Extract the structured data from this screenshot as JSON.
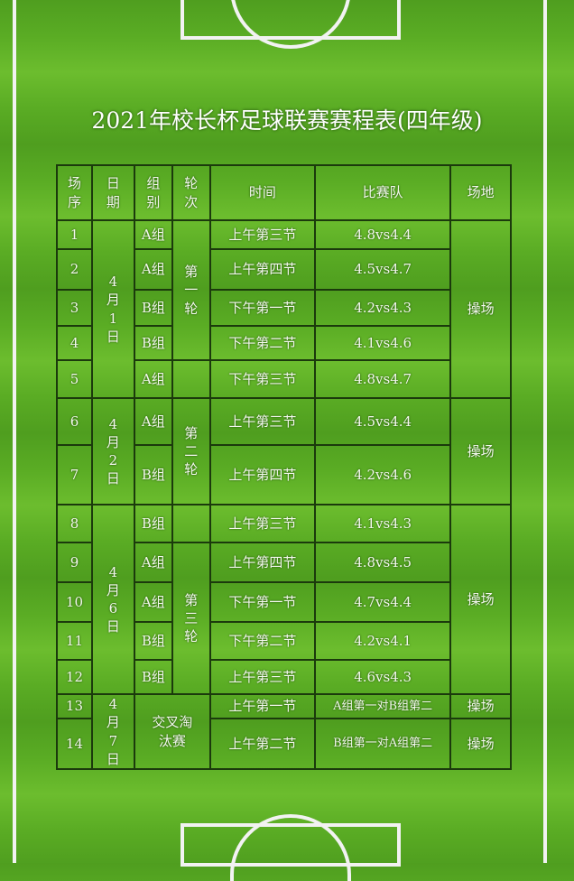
{
  "title": "2021年校长杯足球联赛赛程表(四年级)",
  "headers": {
    "seq": "场序",
    "date": "日期",
    "group": "组别",
    "round": "轮次",
    "time": "时间",
    "teams": "比赛队",
    "venue": "场地"
  },
  "dates": [
    "4月1日",
    "4月2日",
    "4月6日",
    "4月7日"
  ],
  "rounds": [
    "第一轮",
    "第二轮",
    "第三轮",
    "交叉淘汰赛"
  ],
  "venue": "操场",
  "rows": [
    {
      "seq": "1",
      "group": "A组",
      "time": "上午第三节",
      "teams": "4.8vs4.4"
    },
    {
      "seq": "2",
      "group": "A组",
      "time": "上午第四节",
      "teams": "4.5vs4.7"
    },
    {
      "seq": "3",
      "group": "B组",
      "time": "下午第一节",
      "teams": "4.2vs4.3"
    },
    {
      "seq": "4",
      "group": "B组",
      "time": "下午第二节",
      "teams": "4.1vs4.6"
    },
    {
      "seq": "5",
      "group": "A组",
      "time": "下午第三节",
      "teams": "4.8vs4.7"
    },
    {
      "seq": "6",
      "group": "A组",
      "time": "上午第三节",
      "teams": "4.5vs4.4"
    },
    {
      "seq": "7",
      "group": "B组",
      "time": "上午第四节",
      "teams": "4.2vs4.6"
    },
    {
      "seq": "8",
      "group": "B组",
      "time": "上午第三节",
      "teams": "4.1vs4.3"
    },
    {
      "seq": "9",
      "group": "A组",
      "time": "上午第四节",
      "teams": "4.8vs4.5"
    },
    {
      "seq": "10",
      "group": "A组",
      "time": "下午第一节",
      "teams": "4.7vs4.4"
    },
    {
      "seq": "11",
      "group": "B组",
      "time": "下午第二节",
      "teams": "4.2vs4.1"
    },
    {
      "seq": "12",
      "group": "B组",
      "time": "上午第三节",
      "teams": "4.6vs4.3"
    },
    {
      "seq": "13",
      "time": "上午第一节",
      "teams": "A组第一对B组第二"
    },
    {
      "seq": "14",
      "time": "上午第二节",
      "teams": "B组第一对A组第二"
    }
  ]
}
